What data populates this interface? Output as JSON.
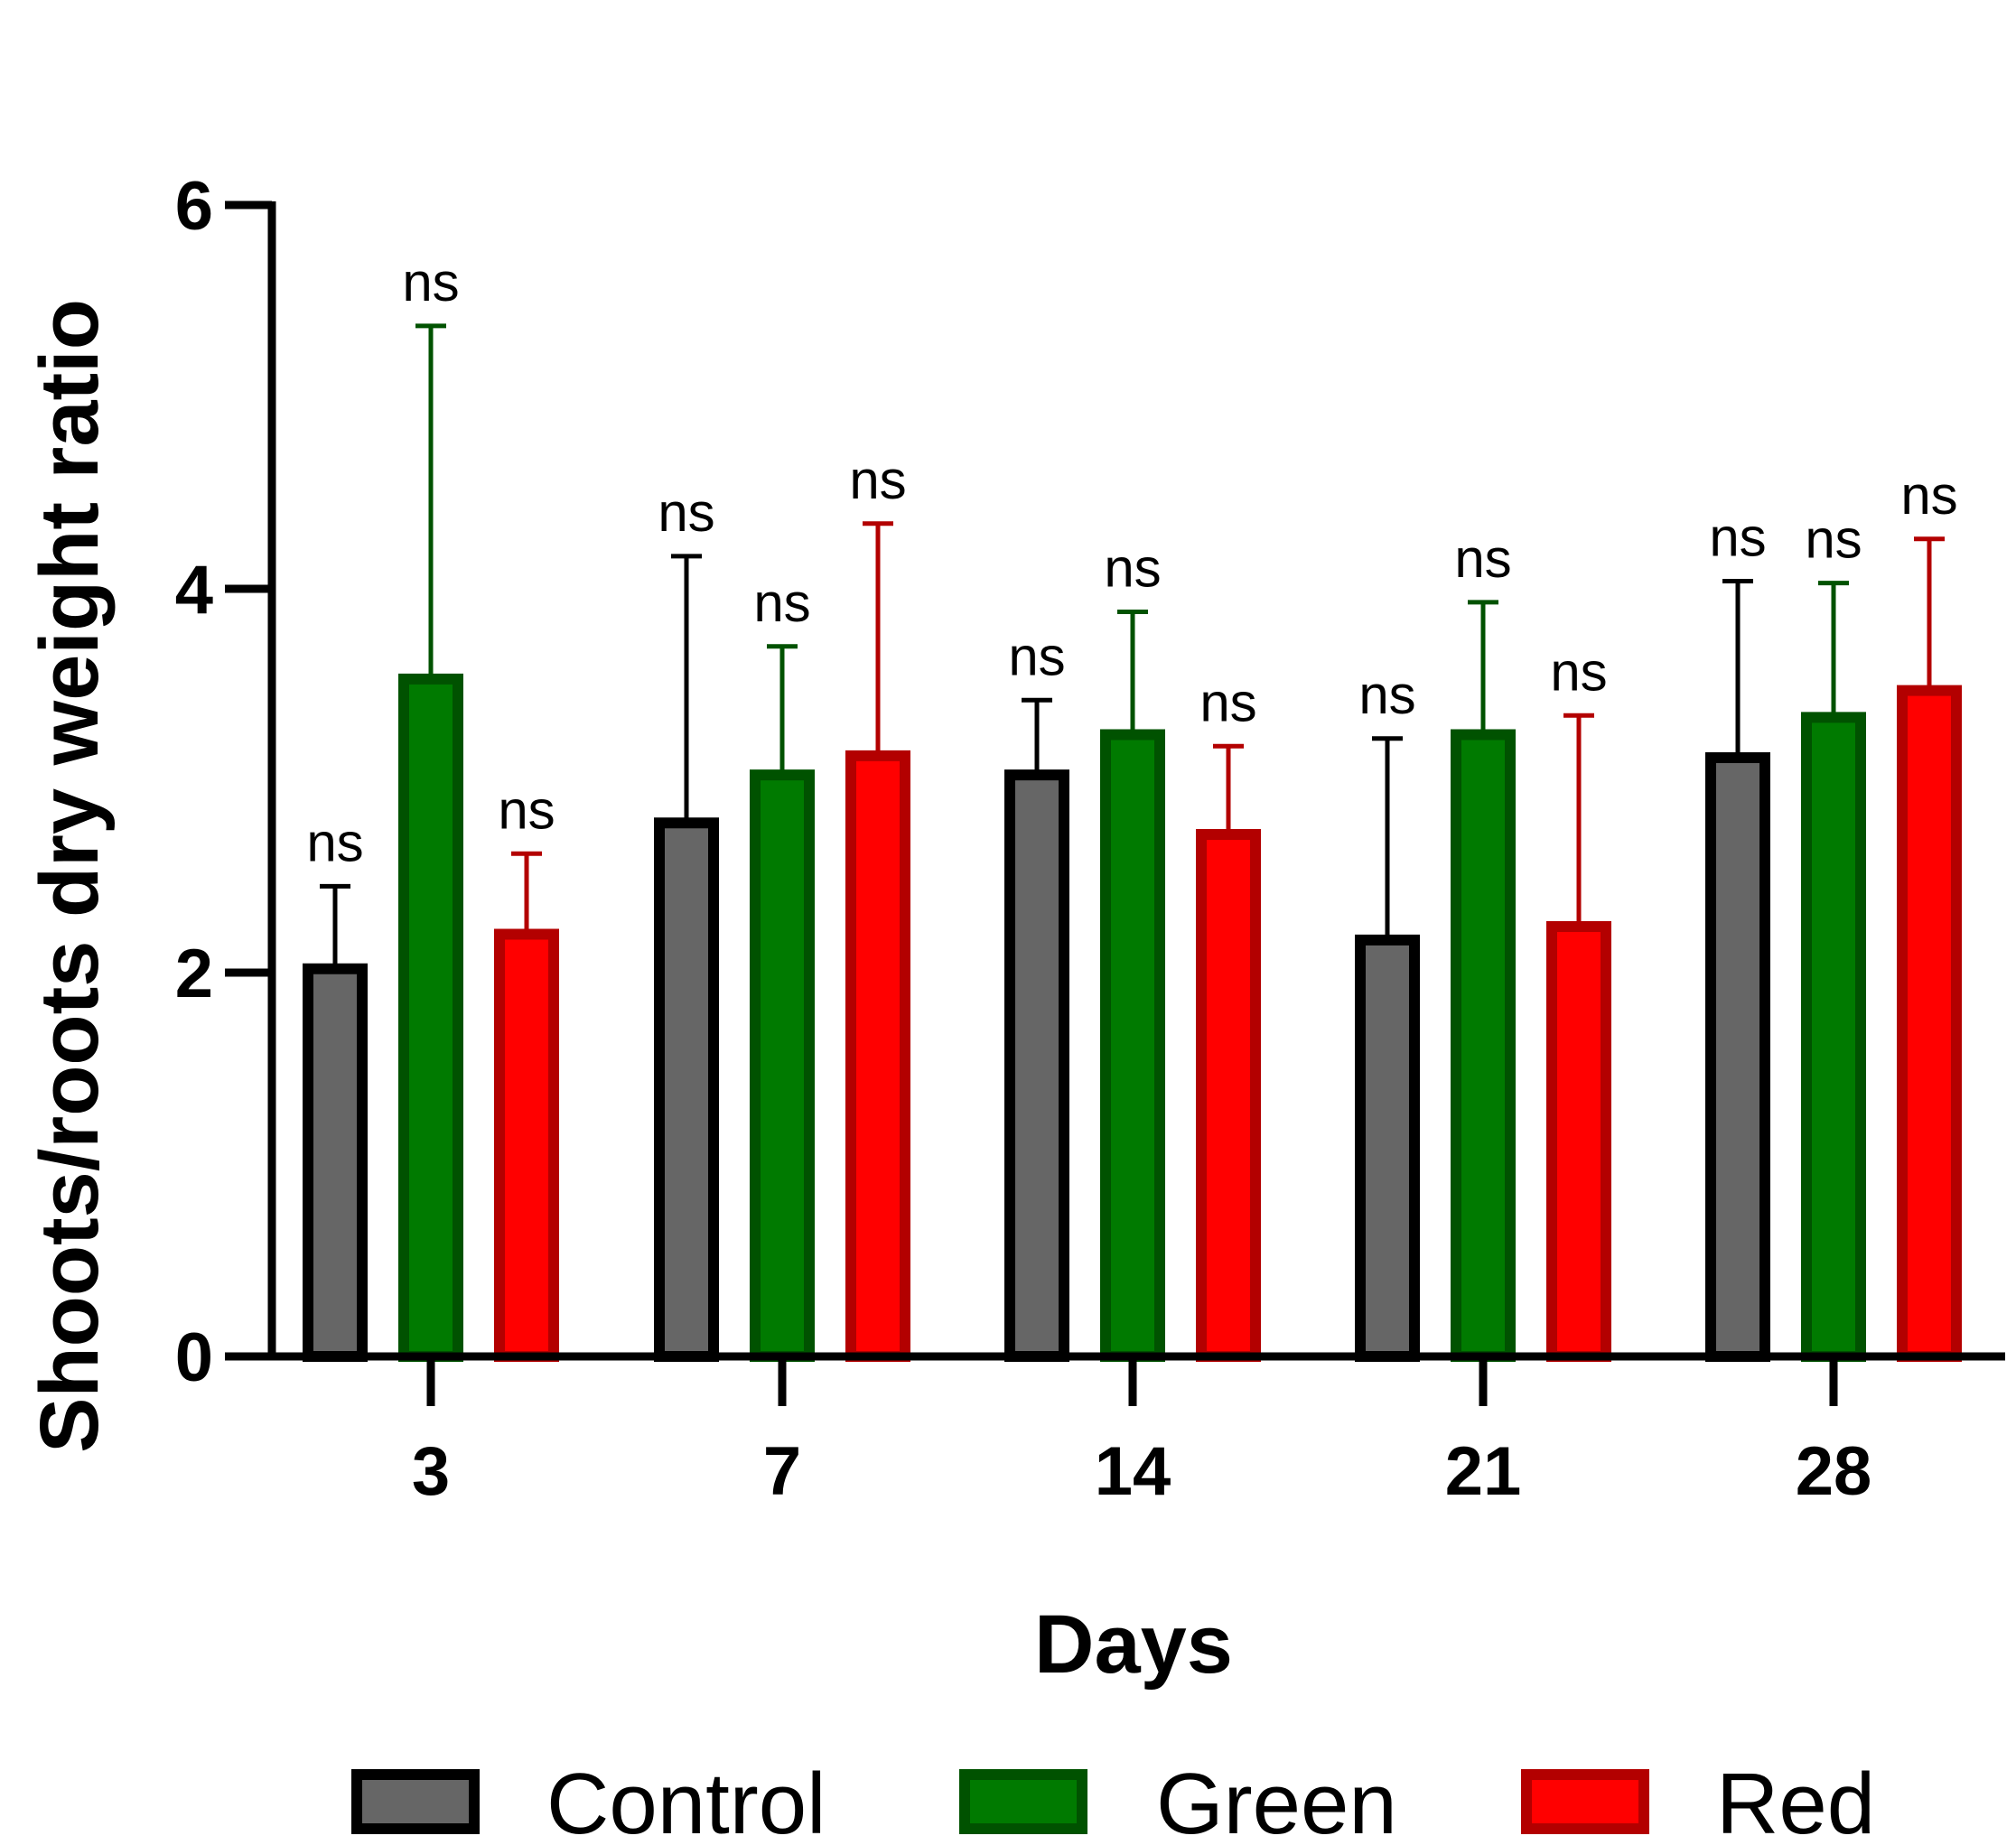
{
  "chart_data": {
    "type": "bar",
    "title": "",
    "xlabel": "Days",
    "ylabel": "Shoots/roots dry weight ratio",
    "ylim": [
      0,
      6
    ],
    "yticks": [
      "0",
      "2",
      "4",
      "6"
    ],
    "categories": [
      "3",
      "7",
      "14",
      "21",
      "28"
    ],
    "series": [
      {
        "name": "Control",
        "fill": "#666666",
        "stroke": "#000000",
        "values": [
          2.02,
          2.78,
          3.03,
          2.17,
          3.12
        ],
        "errors": [
          0.43,
          1.39,
          0.39,
          1.05,
          0.92
        ],
        "annotations": [
          "ns",
          "ns",
          "ns",
          "ns",
          "ns"
        ]
      },
      {
        "name": "Green",
        "fill": "#007a00",
        "stroke": "#005200",
        "values": [
          3.53,
          3.03,
          3.24,
          3.24,
          3.33
        ],
        "errors": [
          1.84,
          0.67,
          0.64,
          0.69,
          0.7
        ],
        "annotations": [
          "ns",
          "ns",
          "ns",
          "ns",
          "ns"
        ]
      },
      {
        "name": "Red",
        "fill": "#ff0000",
        "stroke": "#b30000",
        "values": [
          2.2,
          3.13,
          2.72,
          2.24,
          3.47
        ],
        "errors": [
          0.42,
          1.21,
          0.46,
          1.1,
          0.79
        ],
        "annotations": [
          "ns",
          "ns",
          "ns",
          "ns",
          "ns"
        ]
      }
    ],
    "legend": {
      "position": "bottom"
    }
  }
}
